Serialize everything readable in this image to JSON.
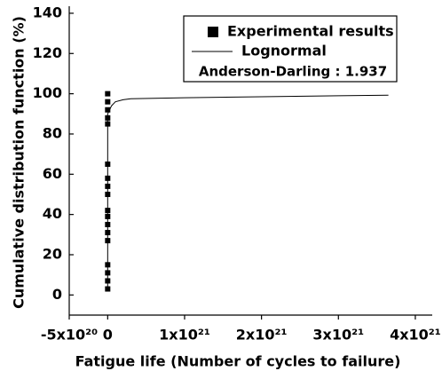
{
  "chart_data": {
    "type": "scatter",
    "x_label": "Fatigue life (Number of cycles to failure)",
    "y_label": "Cumulative distribution function (%)",
    "annotation": "Anderson-Darling : 1.937",
    "xlim": [
      -5e+20,
      4.22e+21
    ],
    "ylim": [
      -10,
      143.5
    ],
    "xticks": [
      {
        "value": -5e+20,
        "label": "-5x10²⁰"
      },
      0,
      {
        "value": 1e+21,
        "label": "1x10²¹"
      },
      {
        "value": 2e+21,
        "label": "2x10²¹"
      },
      {
        "value": 3e+21,
        "label": "3x10²¹"
      },
      {
        "value": 4e+21,
        "label": "4x10²¹"
      }
    ],
    "yticks": [
      0,
      20,
      40,
      60,
      80,
      100,
      120,
      140
    ],
    "legend": "upper right",
    "series": [
      {
        "name": "Experimental results",
        "type": "scatter",
        "color": "#000000",
        "x": [
          0,
          0,
          0,
          0,
          0,
          0,
          0,
          0,
          0,
          0,
          0,
          0,
          0,
          0,
          0,
          0,
          0,
          0
        ],
        "values": [
          3,
          7,
          11,
          15,
          27,
          31,
          35,
          39,
          42,
          50,
          54,
          58,
          65,
          85,
          88,
          92,
          96,
          100
        ]
      },
      {
        "name": "Lognormal",
        "type": "line",
        "color": "#000000",
        "x": [
          0,
          0,
          5e+19,
          1e+20,
          2e+20,
          3e+20,
          1e+21,
          2e+21,
          3e+21,
          3.65e+21
        ],
        "values": [
          3,
          90,
          94,
          96,
          97,
          97.5,
          98,
          98.5,
          99,
          99.3
        ]
      }
    ]
  }
}
